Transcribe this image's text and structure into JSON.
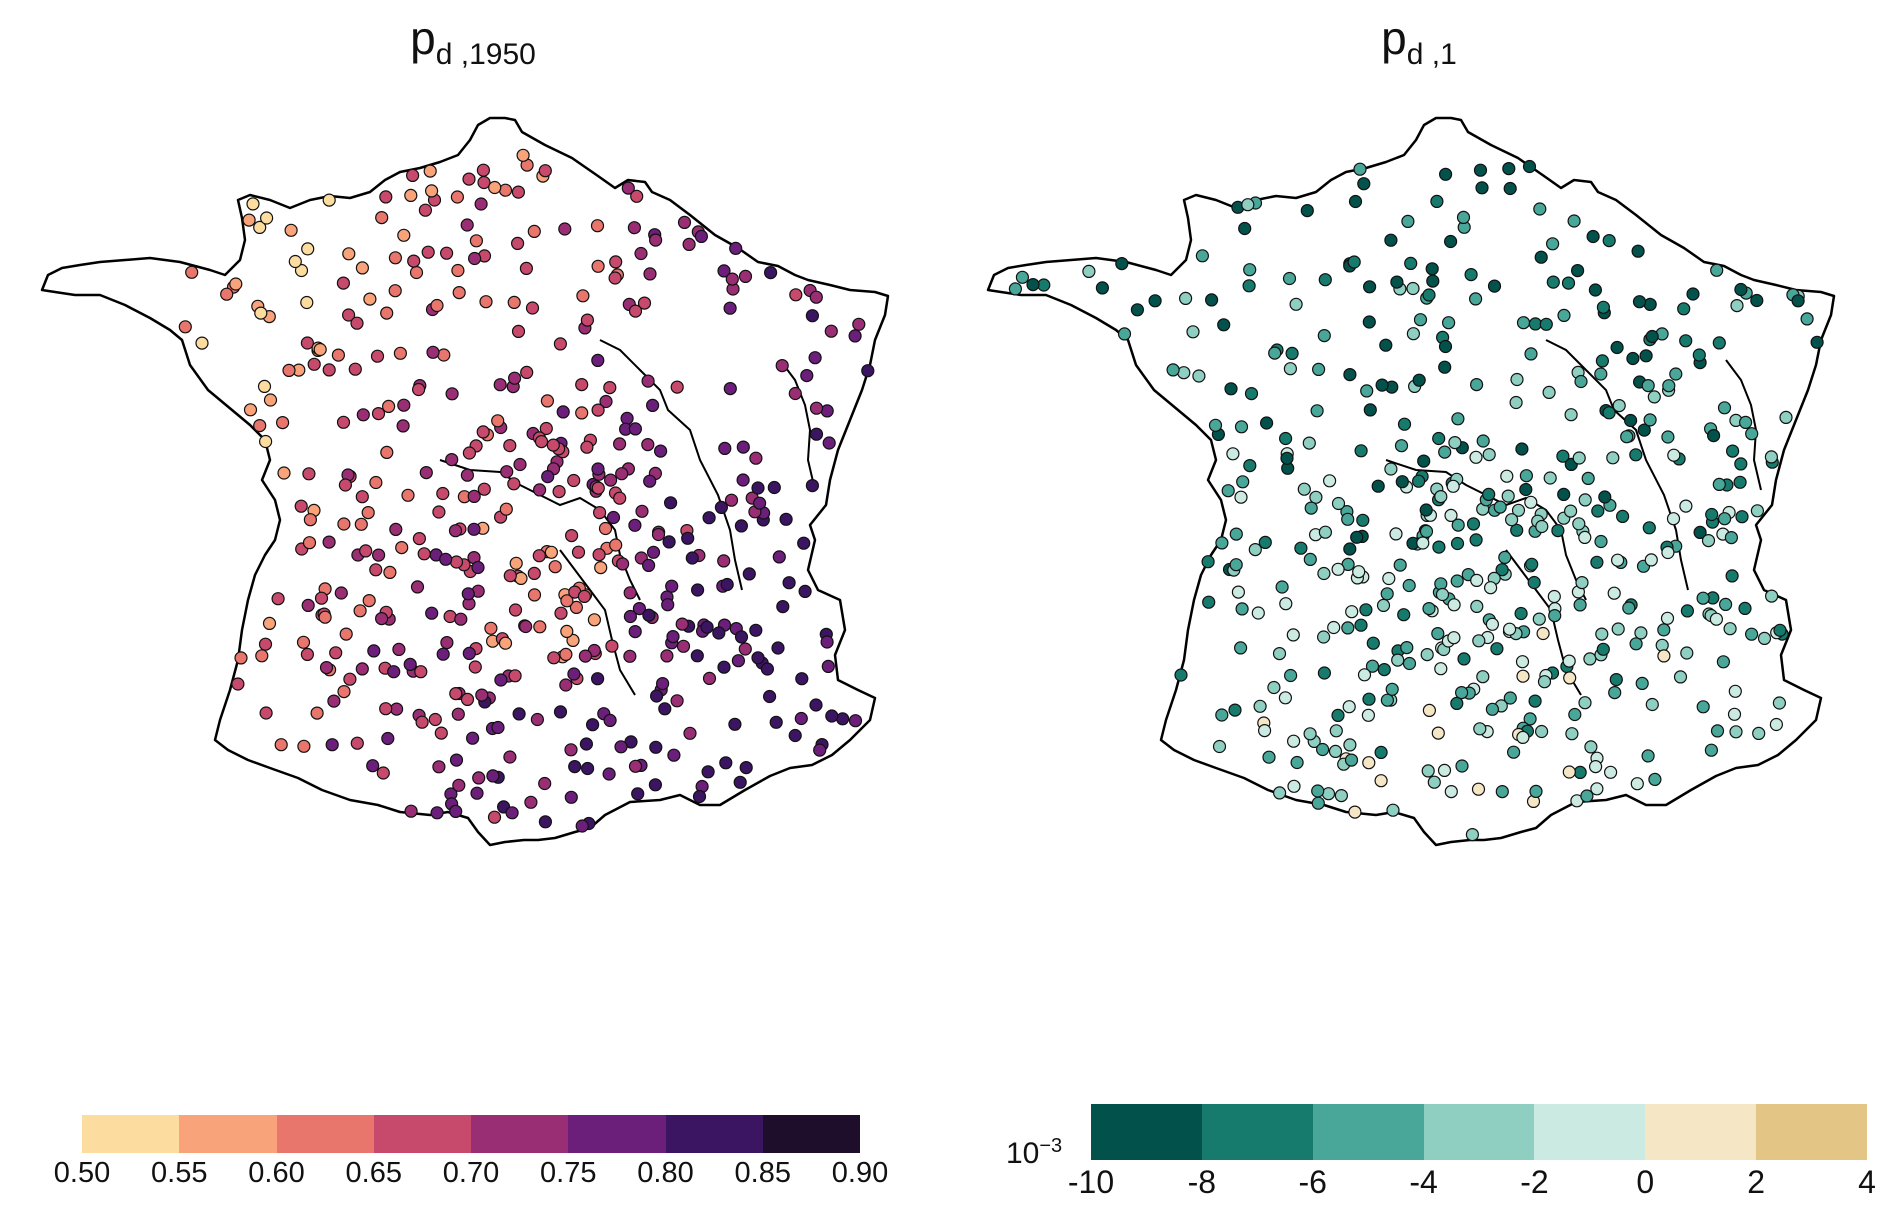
{
  "panels": [
    {
      "title": {
        "base": "p",
        "sub": "d ,1950"
      },
      "colorbar": {
        "colors": [
          "#fcdc9f",
          "#f9a37a",
          "#e8766c",
          "#c74a6d",
          "#9a2e75",
          "#6b1e7a",
          "#3b1561",
          "#1e0e2b"
        ],
        "ticks": [
          "0.50",
          "0.55",
          "0.60",
          "0.65",
          "0.70",
          "0.75",
          "0.80",
          "0.85",
          "0.90"
        ]
      }
    },
    {
      "title": {
        "base": "p",
        "sub": "d ,1"
      },
      "colorbar": {
        "colors": [
          "#02514a",
          "#167a6c",
          "#49a79a",
          "#8ecfc2",
          "#cbeae2",
          "#f5e6c6",
          "#e3c585"
        ],
        "ticks": [
          "-10",
          "-8",
          "-6",
          "-4",
          "-2",
          "0",
          "2",
          "4"
        ],
        "exponent": {
          "base": "10",
          "power": "−3"
        }
      }
    }
  ]
}
